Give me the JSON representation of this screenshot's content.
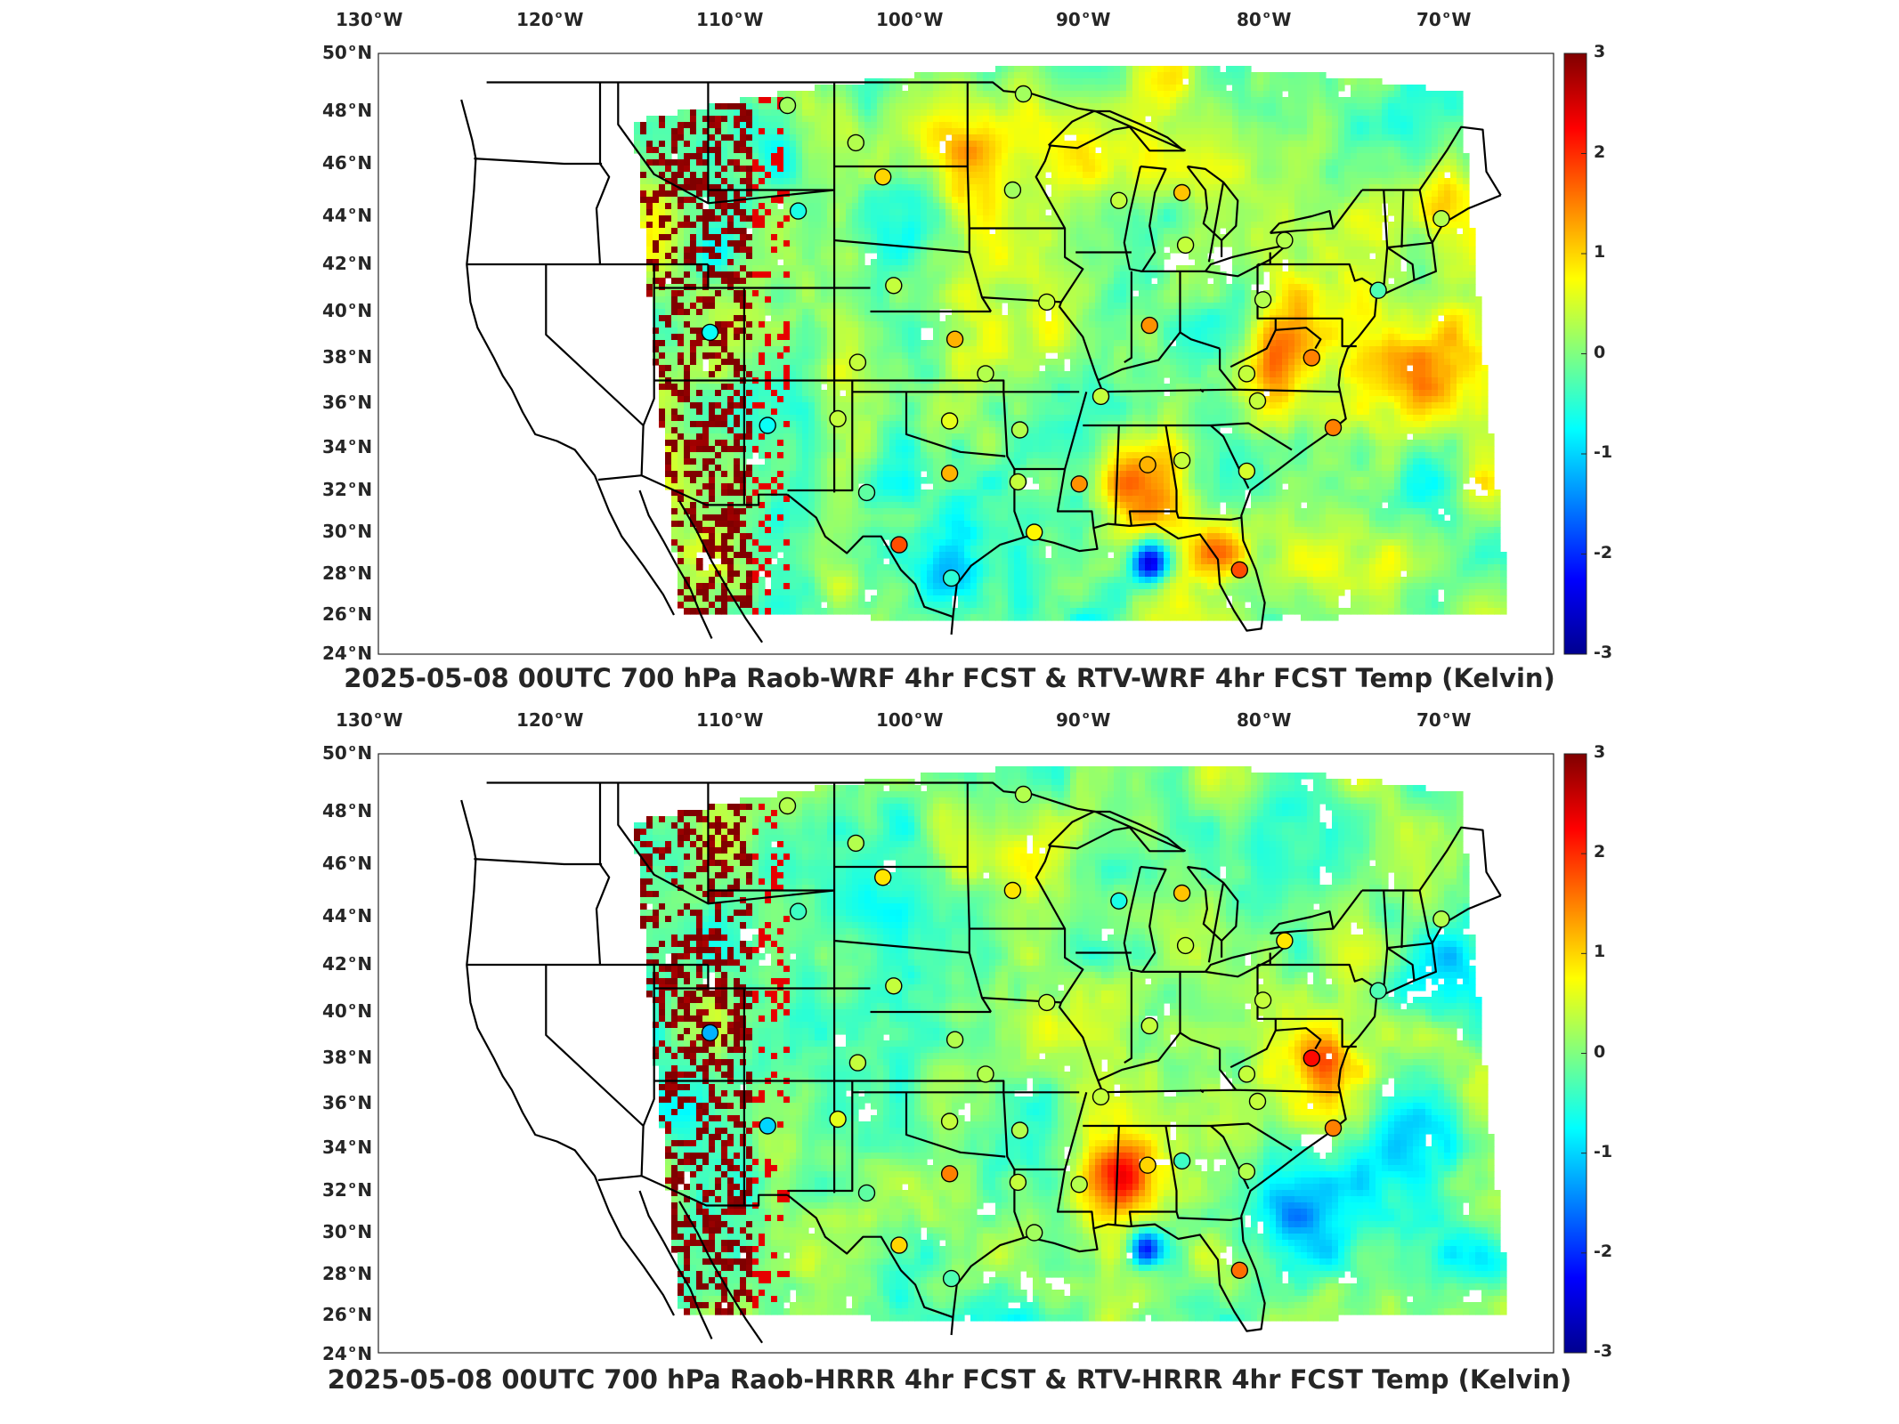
{
  "panels": [
    {
      "title": "2025-05-08 00UTC 700 hPa Raob-WRF 4hr FCST & RTV-WRF 4hr FCST Temp (Kelvin)",
      "variant": "wrf"
    },
    {
      "title": "2025-05-08 00UTC 700 hPa Raob-HRRR 4hr FCST & RTV-HRRR 4hr FCST Temp (Kelvin)",
      "variant": "hrrr"
    }
  ],
  "lon_ticks": [
    {
      "value": -130,
      "text": "130",
      "hemi": "W"
    },
    {
      "value": -120,
      "text": "120",
      "hemi": "W"
    },
    {
      "value": -110,
      "text": "110",
      "hemi": "W"
    },
    {
      "value": -100,
      "text": "100",
      "hemi": "W"
    },
    {
      "value": -90,
      "text": "90",
      "hemi": "W"
    },
    {
      "value": -80,
      "text": "80",
      "hemi": "W"
    },
    {
      "value": -70,
      "text": "70",
      "hemi": "W"
    }
  ],
  "lat_ticks": [
    {
      "value": 50,
      "text": "50",
      "hemi": "N"
    },
    {
      "value": 48,
      "text": "48",
      "hemi": "N"
    },
    {
      "value": 46,
      "text": "46",
      "hemi": "N"
    },
    {
      "value": 44,
      "text": "44",
      "hemi": "N"
    },
    {
      "value": 42,
      "text": "42",
      "hemi": "N"
    },
    {
      "value": 40,
      "text": "40",
      "hemi": "N"
    },
    {
      "value": 38,
      "text": "38",
      "hemi": "N"
    },
    {
      "value": 36,
      "text": "36",
      "hemi": "N"
    },
    {
      "value": 34,
      "text": "34",
      "hemi": "N"
    },
    {
      "value": 32,
      "text": "32",
      "hemi": "N"
    },
    {
      "value": 30,
      "text": "30",
      "hemi": "N"
    },
    {
      "value": 28,
      "text": "28",
      "hemi": "N"
    },
    {
      "value": 26,
      "text": "26",
      "hemi": "N"
    },
    {
      "value": 24,
      "text": "24",
      "hemi": "N"
    }
  ],
  "colorbar": {
    "min": -3,
    "max": 3,
    "ticks": [
      "3",
      "2",
      "1",
      "0",
      "-1",
      "-2",
      "-3"
    ],
    "colormap": [
      "#00008f",
      "#0000ff",
      "#0080ff",
      "#00ffff",
      "#80ff80",
      "#ffff00",
      "#ff8000",
      "#ff0000",
      "#800000"
    ]
  },
  "colors": {
    "state_lines": "#000000",
    "missing": "#ffffff"
  },
  "raob_stations": [
    {
      "lon": -106.6,
      "lat": 48.2,
      "wrf": 0.2,
      "hrrr": 0.3
    },
    {
      "lon": -102.8,
      "lat": 46.8,
      "wrf": 0.3,
      "hrrr": 0.3
    },
    {
      "lon": -93.5,
      "lat": 48.6,
      "wrf": 0.2,
      "hrrr": 0.3
    },
    {
      "lon": -101.3,
      "lat": 45.5,
      "wrf": 1.0,
      "hrrr": 0.9
    },
    {
      "lon": -94.1,
      "lat": 45.0,
      "wrf": 0.2,
      "hrrr": 0.9
    },
    {
      "lon": -106.0,
      "lat": 44.2,
      "wrf": -0.6,
      "hrrr": -0.4
    },
    {
      "lon": -88.2,
      "lat": 44.6,
      "wrf": 0.4,
      "hrrr": -0.6
    },
    {
      "lon": -84.7,
      "lat": 44.9,
      "wrf": 1.1,
      "hrrr": 1.1
    },
    {
      "lon": -84.5,
      "lat": 42.8,
      "wrf": 0.4,
      "hrrr": 0.4
    },
    {
      "lon": -79.0,
      "lat": 43.0,
      "wrf": 0.3,
      "hrrr": 0.9
    },
    {
      "lon": -70.3,
      "lat": 43.9,
      "wrf": 0.3,
      "hrrr": 0.3
    },
    {
      "lon": -73.8,
      "lat": 40.9,
      "wrf": -0.3,
      "hrrr": -0.3
    },
    {
      "lon": -100.7,
      "lat": 41.1,
      "wrf": 0.4,
      "hrrr": 0.4
    },
    {
      "lon": -97.3,
      "lat": 38.8,
      "wrf": 1.2,
      "hrrr": 0.3
    },
    {
      "lon": -102.7,
      "lat": 37.8,
      "wrf": 0.4,
      "hrrr": 0.4
    },
    {
      "lon": -92.2,
      "lat": 40.4,
      "wrf": 0.4,
      "hrrr": 0.4
    },
    {
      "lon": -86.5,
      "lat": 39.4,
      "wrf": 1.4,
      "hrrr": 0.4
    },
    {
      "lon": -80.2,
      "lat": 40.5,
      "wrf": 0.3,
      "hrrr": 0.4
    },
    {
      "lon": -95.6,
      "lat": 37.3,
      "wrf": 0.3,
      "hrrr": 0.3
    },
    {
      "lon": -77.5,
      "lat": 38.0,
      "wrf": 1.5,
      "hrrr": 2.2
    },
    {
      "lon": -81.1,
      "lat": 37.3,
      "wrf": 0.4,
      "hrrr": 0.4
    },
    {
      "lon": -89.2,
      "lat": 36.3,
      "wrf": 0.4,
      "hrrr": 0.4
    },
    {
      "lon": -80.5,
      "lat": 36.1,
      "wrf": 0.4,
      "hrrr": 0.4
    },
    {
      "lon": -76.3,
      "lat": 34.9,
      "wrf": 1.5,
      "hrrr": 1.5
    },
    {
      "lon": -103.8,
      "lat": 35.3,
      "wrf": 0.4,
      "hrrr": 0.6
    },
    {
      "lon": -97.6,
      "lat": 35.2,
      "wrf": 0.6,
      "hrrr": 0.4
    },
    {
      "lon": -93.7,
      "lat": 34.8,
      "wrf": 0.3,
      "hrrr": 0.3
    },
    {
      "lon": -86.6,
      "lat": 33.2,
      "wrf": 1.2,
      "hrrr": 1.0
    },
    {
      "lon": -84.7,
      "lat": 33.4,
      "wrf": 0.4,
      "hrrr": -0.4
    },
    {
      "lon": -90.4,
      "lat": 32.3,
      "wrf": 1.4,
      "hrrr": 0.3
    },
    {
      "lon": -81.1,
      "lat": 32.9,
      "wrf": 0.5,
      "hrrr": 0.3
    },
    {
      "lon": -97.6,
      "lat": 32.8,
      "wrf": 1.2,
      "hrrr": 1.5
    },
    {
      "lon": -93.8,
      "lat": 32.4,
      "wrf": 0.4,
      "hrrr": 0.4
    },
    {
      "lon": -102.2,
      "lat": 31.9,
      "wrf": -0.2,
      "hrrr": -0.2
    },
    {
      "lon": -92.9,
      "lat": 30.0,
      "wrf": 0.8,
      "hrrr": 0.2
    },
    {
      "lon": -100.4,
      "lat": 29.4,
      "wrf": 1.8,
      "hrrr": 1.0
    },
    {
      "lon": -97.5,
      "lat": 27.8,
      "wrf": -0.5,
      "hrrr": -0.3
    },
    {
      "lon": -81.5,
      "lat": 28.2,
      "wrf": 1.8,
      "hrrr": 1.6
    },
    {
      "lon": -110.9,
      "lat": 39.1,
      "wrf": -0.7,
      "hrrr": -1.2
    },
    {
      "lon": -107.7,
      "lat": 35.0,
      "wrf": -0.7,
      "hrrr": -1.0
    }
  ]
}
